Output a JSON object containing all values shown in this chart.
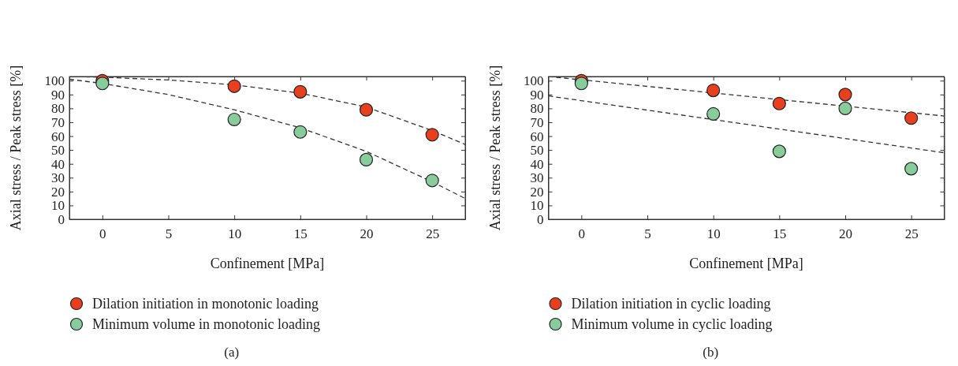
{
  "chart_data": [
    {
      "type": "scatter",
      "xlabel": "Confinement [MPa]",
      "ylabel": "Axial stress / Peak stress [%]",
      "xlim": [
        -2.5,
        27.5
      ],
      "ylim": [
        0,
        103
      ],
      "xticks": [
        0,
        5,
        10,
        15,
        20,
        25
      ],
      "yticks": [
        0,
        10,
        20,
        30,
        40,
        50,
        60,
        70,
        80,
        90,
        100
      ],
      "grid": false,
      "legend": "bottom",
      "marker": "circle",
      "annotations": [
        "(a)"
      ],
      "x": [
        0,
        10,
        15,
        20,
        25
      ],
      "series": [
        {
          "name": "Dilation initiation in monotonic loading",
          "color": "#e8401f",
          "values": [
            100,
            96,
            92,
            79,
            61
          ]
        },
        {
          "name": "Minimum volume in monotonic loading",
          "color": "#88cc9c",
          "values": [
            98,
            72,
            63,
            43,
            28
          ]
        },
        {
          "type": "line",
          "line_style": "dashed",
          "marker": "none",
          "color": "#333333",
          "x": [
            -2.5,
            0,
            5,
            10,
            15,
            20,
            25,
            27.5
          ],
          "values": [
            103,
            102.5,
            100.5,
            97,
            91,
            81,
            64,
            54
          ]
        },
        {
          "type": "line",
          "line_style": "dashed",
          "marker": "none",
          "color": "#333333",
          "x": [
            -2.5,
            0,
            5,
            10,
            15,
            20,
            25,
            27.5
          ],
          "values": [
            101,
            98,
            90,
            79,
            66,
            49,
            27,
            15
          ]
        }
      ]
    },
    {
      "type": "scatter",
      "xlabel": "Confinement [MPa]",
      "ylabel": "Axial stress / Peak stress [%]",
      "xlim": [
        -2.5,
        27.5
      ],
      "ylim": [
        0,
        103
      ],
      "xticks": [
        0,
        5,
        10,
        15,
        20,
        25
      ],
      "yticks": [
        0,
        10,
        20,
        30,
        40,
        50,
        60,
        70,
        80,
        90,
        100
      ],
      "grid": false,
      "legend": "bottom",
      "marker": "circle",
      "annotations": [
        "(b)"
      ],
      "x": [
        0,
        10,
        15,
        20,
        25
      ],
      "series": [
        {
          "name": "Dilation initiation in cyclic loading",
          "color": "#e8401f",
          "values": [
            100,
            93,
            83.5,
            90,
            73
          ]
        },
        {
          "name": "Minimum volume in cyclic loading",
          "color": "#88cc9c",
          "values": [
            98,
            76,
            49,
            80,
            36.5
          ]
        },
        {
          "type": "line",
          "line_style": "dashed",
          "marker": "none",
          "color": "#333333",
          "x": [
            -2.5,
            27.5
          ],
          "values": [
            103,
            74.5
          ]
        },
        {
          "type": "line",
          "line_style": "dashed",
          "marker": "none",
          "color": "#333333",
          "x": [
            -2.5,
            27.5
          ],
          "values": [
            89,
            48
          ]
        }
      ]
    }
  ]
}
